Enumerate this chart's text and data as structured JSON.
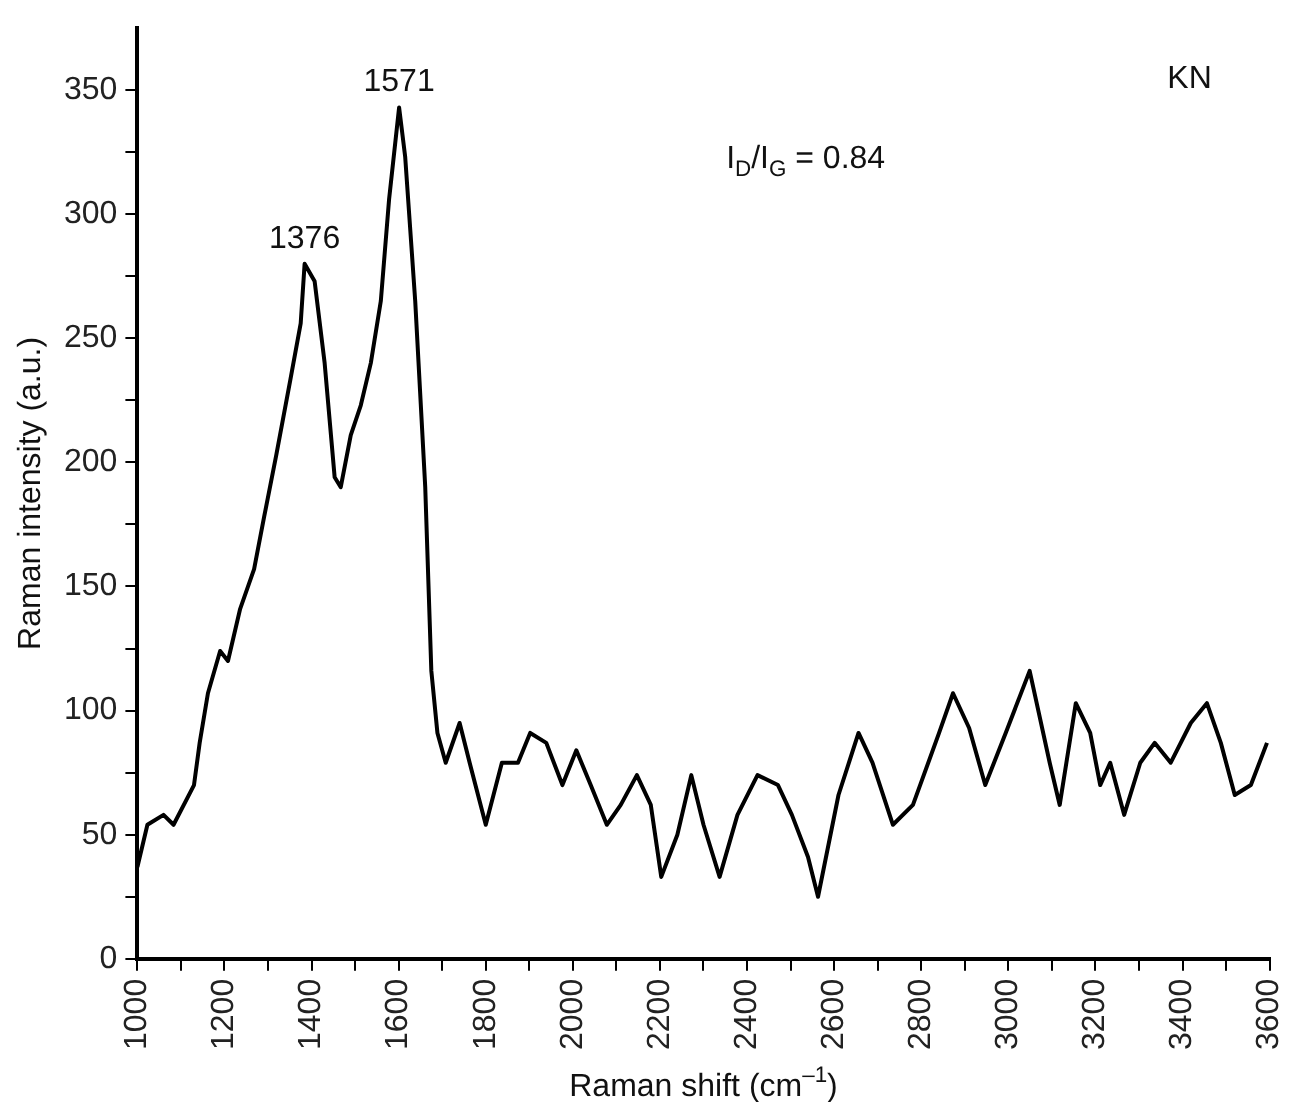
{
  "chart_data": {
    "type": "line",
    "xlabel": "Raman shift (cm$^{–1}$)",
    "ylabel": "Raman intensity (a.u.)",
    "xlim": [
      1000,
      3600
    ],
    "ylim": [
      0,
      375
    ],
    "xticks": [
      1000,
      {
        "value": 1100,
        "label": null
      },
      1200,
      {
        "value": 1300,
        "label": null
      },
      1400,
      {
        "value": 1500,
        "label": null
      },
      1600,
      {
        "value": 1700,
        "label": null
      },
      1800,
      {
        "value": 1900,
        "label": null
      },
      2000,
      {
        "value": 2100,
        "label": null
      },
      2200,
      {
        "value": 2300,
        "label": null
      },
      2400,
      {
        "value": 2500,
        "label": null
      },
      2600,
      {
        "value": 2700,
        "label": null
      },
      2800,
      {
        "value": 2900,
        "label": null
      },
      3000,
      {
        "value": 3100,
        "label": null
      },
      3200,
      {
        "value": 3300,
        "label": null
      },
      3400,
      {
        "value": 3500,
        "label": null
      },
      3600
    ],
    "yticks": [
      0,
      {
        "value": 25,
        "label": null
      },
      50,
      {
        "value": 75,
        "label": null
      },
      100,
      {
        "value": 125,
        "label": null
      },
      150,
      {
        "value": 175,
        "label": null
      },
      200,
      {
        "value": 225,
        "label": null
      },
      250,
      {
        "value": 275,
        "label": null
      },
      300,
      {
        "value": 325,
        "label": null
      },
      350
    ],
    "grid": false,
    "legend": false,
    "marker": "none",
    "line_style": "solid",
    "series": [
      {
        "color": "#000000",
        "x": [
          1000,
          1023,
          1060,
          1083,
          1130,
          1143,
          1162,
          1190,
          1208,
          1236,
          1268,
          1291,
          1319,
          1351,
          1375,
          1384,
          1407,
          1430,
          1453,
          1467,
          1490,
          1513,
          1536,
          1559,
          1578,
          1601,
          1615,
          1638,
          1661,
          1675,
          1689,
          1708,
          1740,
          1763,
          1800,
          1837,
          1874,
          1902,
          1939,
          1976,
          2008,
          2041,
          2078,
          2110,
          2147,
          2179,
          2203,
          2240,
          2272,
          2300,
          2337,
          2378,
          2424,
          2471,
          2503,
          2540,
          2563,
          2610,
          2656,
          2688,
          2735,
          2781,
          2841,
          2873,
          2910,
          2947,
          2994,
          3049,
          3095,
          3118,
          3155,
          3188,
          3211,
          3234,
          3266,
          3303,
          3336,
          3373,
          3419,
          3456,
          3488,
          3520,
          3557,
          3594
        ],
        "values": [
          37,
          54,
          58,
          54,
          70,
          87,
          107,
          124,
          120,
          141,
          157,
          178,
          203,
          233,
          256,
          280,
          273,
          240,
          194,
          190,
          211,
          223,
          240,
          265,
          306,
          343,
          323,
          265,
          190,
          116,
          91,
          79,
          95,
          79,
          54,
          79,
          79,
          91,
          87,
          70,
          84,
          70,
          54,
          62,
          74,
          62,
          33,
          50,
          74,
          54,
          33,
          58,
          74,
          70,
          58,
          41,
          25,
          66,
          91,
          79,
          54,
          62,
          91,
          107,
          93,
          70,
          91,
          116,
          79,
          62,
          103,
          91,
          70,
          79,
          58,
          79,
          87,
          79,
          95,
          103,
          87,
          66,
          70,
          87
        ]
      }
    ],
    "annotations": [
      {
        "text": "1376",
        "x": 1384,
        "y": 280
      },
      {
        "text": "1571",
        "x": 1601,
        "y": 343
      },
      "I$_{D}$/I$_{G}$ = 0.84",
      "KN"
    ]
  }
}
